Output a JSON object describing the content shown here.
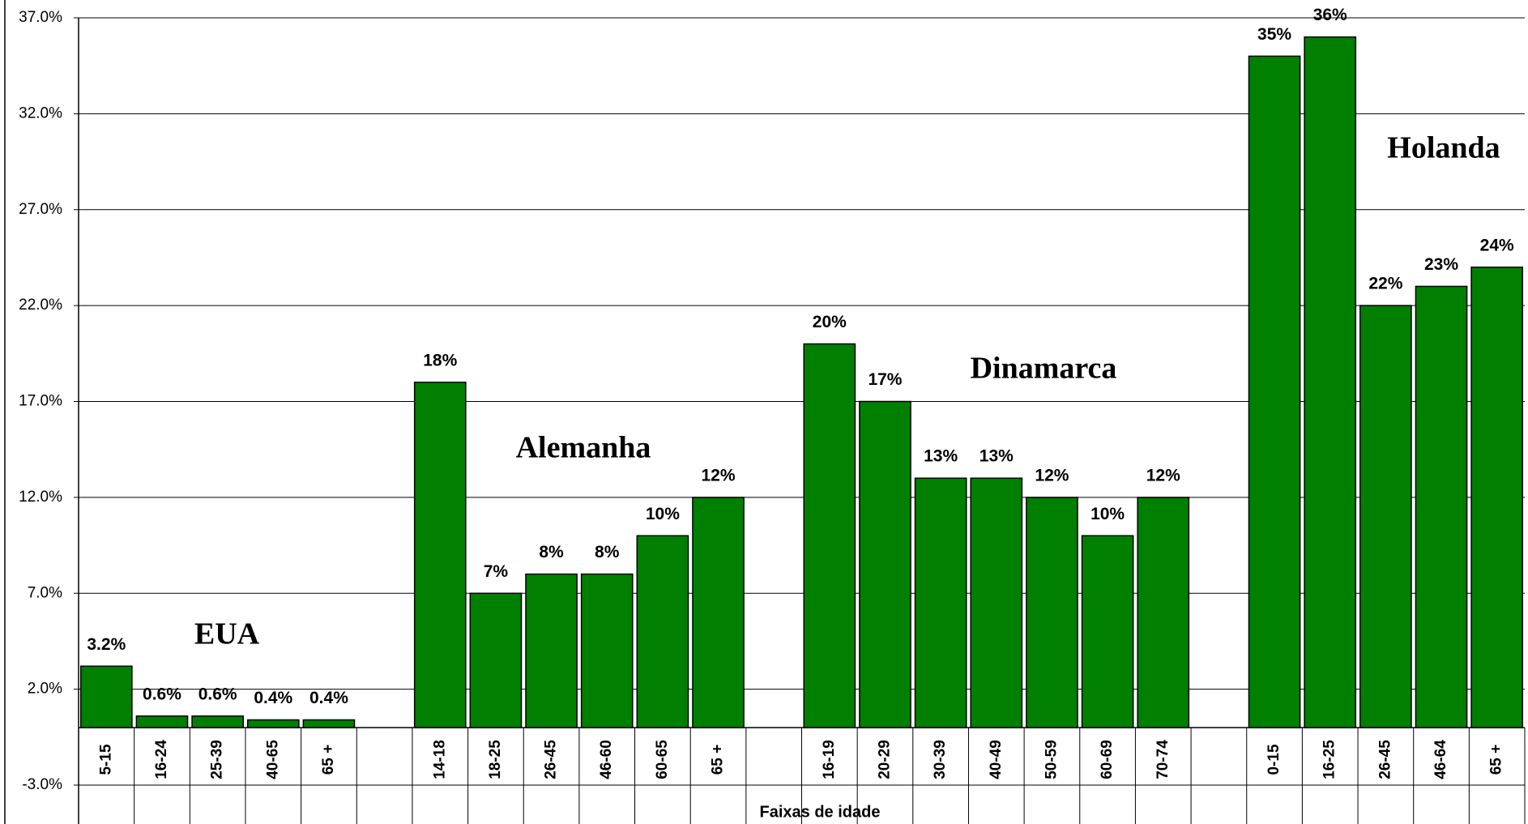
{
  "chart_data": {
    "type": "bar",
    "xlabel": "Faixas de idade",
    "categories": [
      "5-15",
      "16-24",
      "25-39",
      "40-65",
      "65 +",
      null,
      "14-18",
      "18-25",
      "26-45",
      "46-60",
      "60-65",
      "65 +",
      null,
      "16-19",
      "20-29",
      "30-39",
      "40-49",
      "50-59",
      "60-69",
      "70-74",
      null,
      "0-15",
      "16-25",
      "26-45",
      "46-64",
      "65 +"
    ],
    "values": [
      3.2,
      0.6,
      0.6,
      0.4,
      0.4,
      null,
      18,
      7,
      8,
      8,
      10,
      12,
      null,
      20,
      17,
      13,
      13,
      12,
      10,
      12,
      null,
      35,
      36,
      22,
      23,
      24
    ],
    "value_labels": [
      "3.2%",
      "0.6%",
      "0.6%",
      "0.4%",
      "0.4%",
      null,
      "18%",
      "7%",
      "8%",
      "8%",
      "10%",
      "12%",
      null,
      "20%",
      "17%",
      "13%",
      "13%",
      "12%",
      "10%",
      "12%",
      null,
      "35%",
      "36%",
      "22%",
      "23%",
      "24%"
    ],
    "color": "#007f00",
    "ylim": [
      -3,
      37
    ],
    "yticks": [
      {
        "value": -3,
        "label": "-3.0%"
      },
      {
        "value": 2,
        "label": "2.0%"
      },
      {
        "value": 7,
        "label": "7.0%"
      },
      {
        "value": 12,
        "label": "12.0%"
      },
      {
        "value": 17,
        "label": "17.0%"
      },
      {
        "value": 22,
        "label": "22.0%"
      },
      {
        "value": 27,
        "label": "27.0%"
      },
      {
        "value": 32,
        "label": "32.0%"
      },
      {
        "value": 37,
        "label": "37.0%"
      }
    ],
    "grid": true,
    "annotations": [
      "EUA",
      "Alemanha",
      "Dinamarca",
      "Holanda"
    ]
  }
}
